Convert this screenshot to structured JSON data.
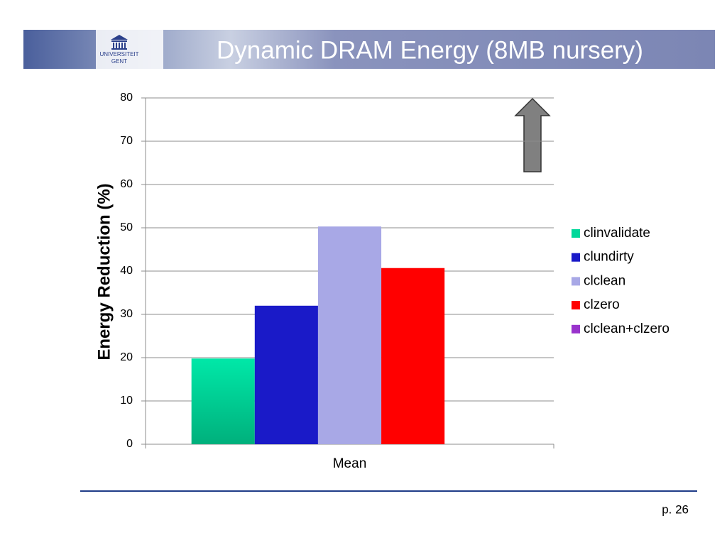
{
  "slide": {
    "title": "Dynamic DRAM Energy (8MB nursery)",
    "logo": [
      "UNIVERSITEIT",
      "GENT"
    ],
    "page": "p. 26"
  },
  "chart_data": {
    "type": "bar",
    "ylabel": "Energy Reduction (%)",
    "categories": [
      "Mean"
    ],
    "series": [
      {
        "name": "clinvalidate",
        "color": "#00d89a",
        "values": [
          19.8
        ]
      },
      {
        "name": "clundirty",
        "color": "#1a1ac8",
        "values": [
          32
        ]
      },
      {
        "name": "clclean",
        "color": "#a8a8e6",
        "values": [
          50.3
        ]
      },
      {
        "name": "clzero",
        "color": "#ff0000",
        "values": [
          40.7
        ]
      },
      {
        "name": "clclean+clzero",
        "color": "#9933cc",
        "values": [
          null
        ]
      }
    ],
    "ylim": [
      0,
      80
    ],
    "yticks": [
      0,
      10,
      20,
      30,
      40,
      50,
      60,
      70,
      80
    ],
    "grid": true,
    "legend": "right"
  }
}
